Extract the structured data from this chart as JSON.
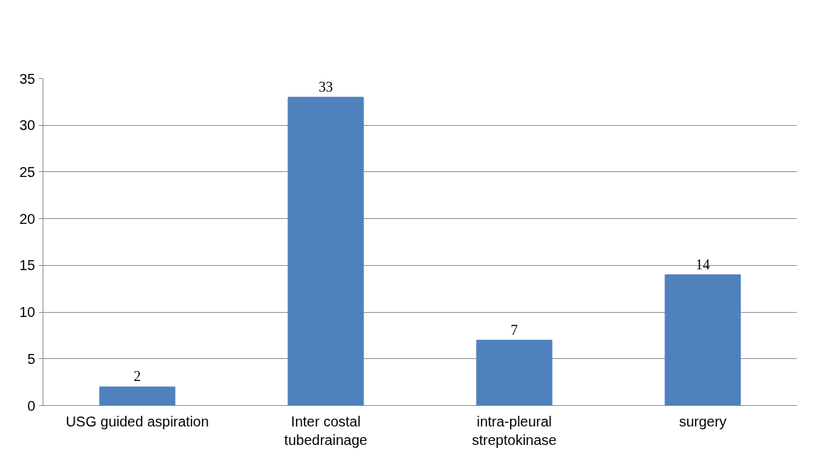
{
  "chart_data": {
    "type": "bar",
    "categories": [
      "USG guided aspiration",
      "Inter costal\ntubedrainage",
      "intra-pleural\nstreptokinase",
      "surgery"
    ],
    "values": [
      2,
      33,
      7,
      14
    ],
    "color": "#4f81bd",
    "ylim": [
      0,
      35
    ],
    "yticks": [
      0,
      5,
      10,
      15,
      20,
      25,
      30,
      35
    ],
    "grid": "y",
    "data_labels": true
  }
}
